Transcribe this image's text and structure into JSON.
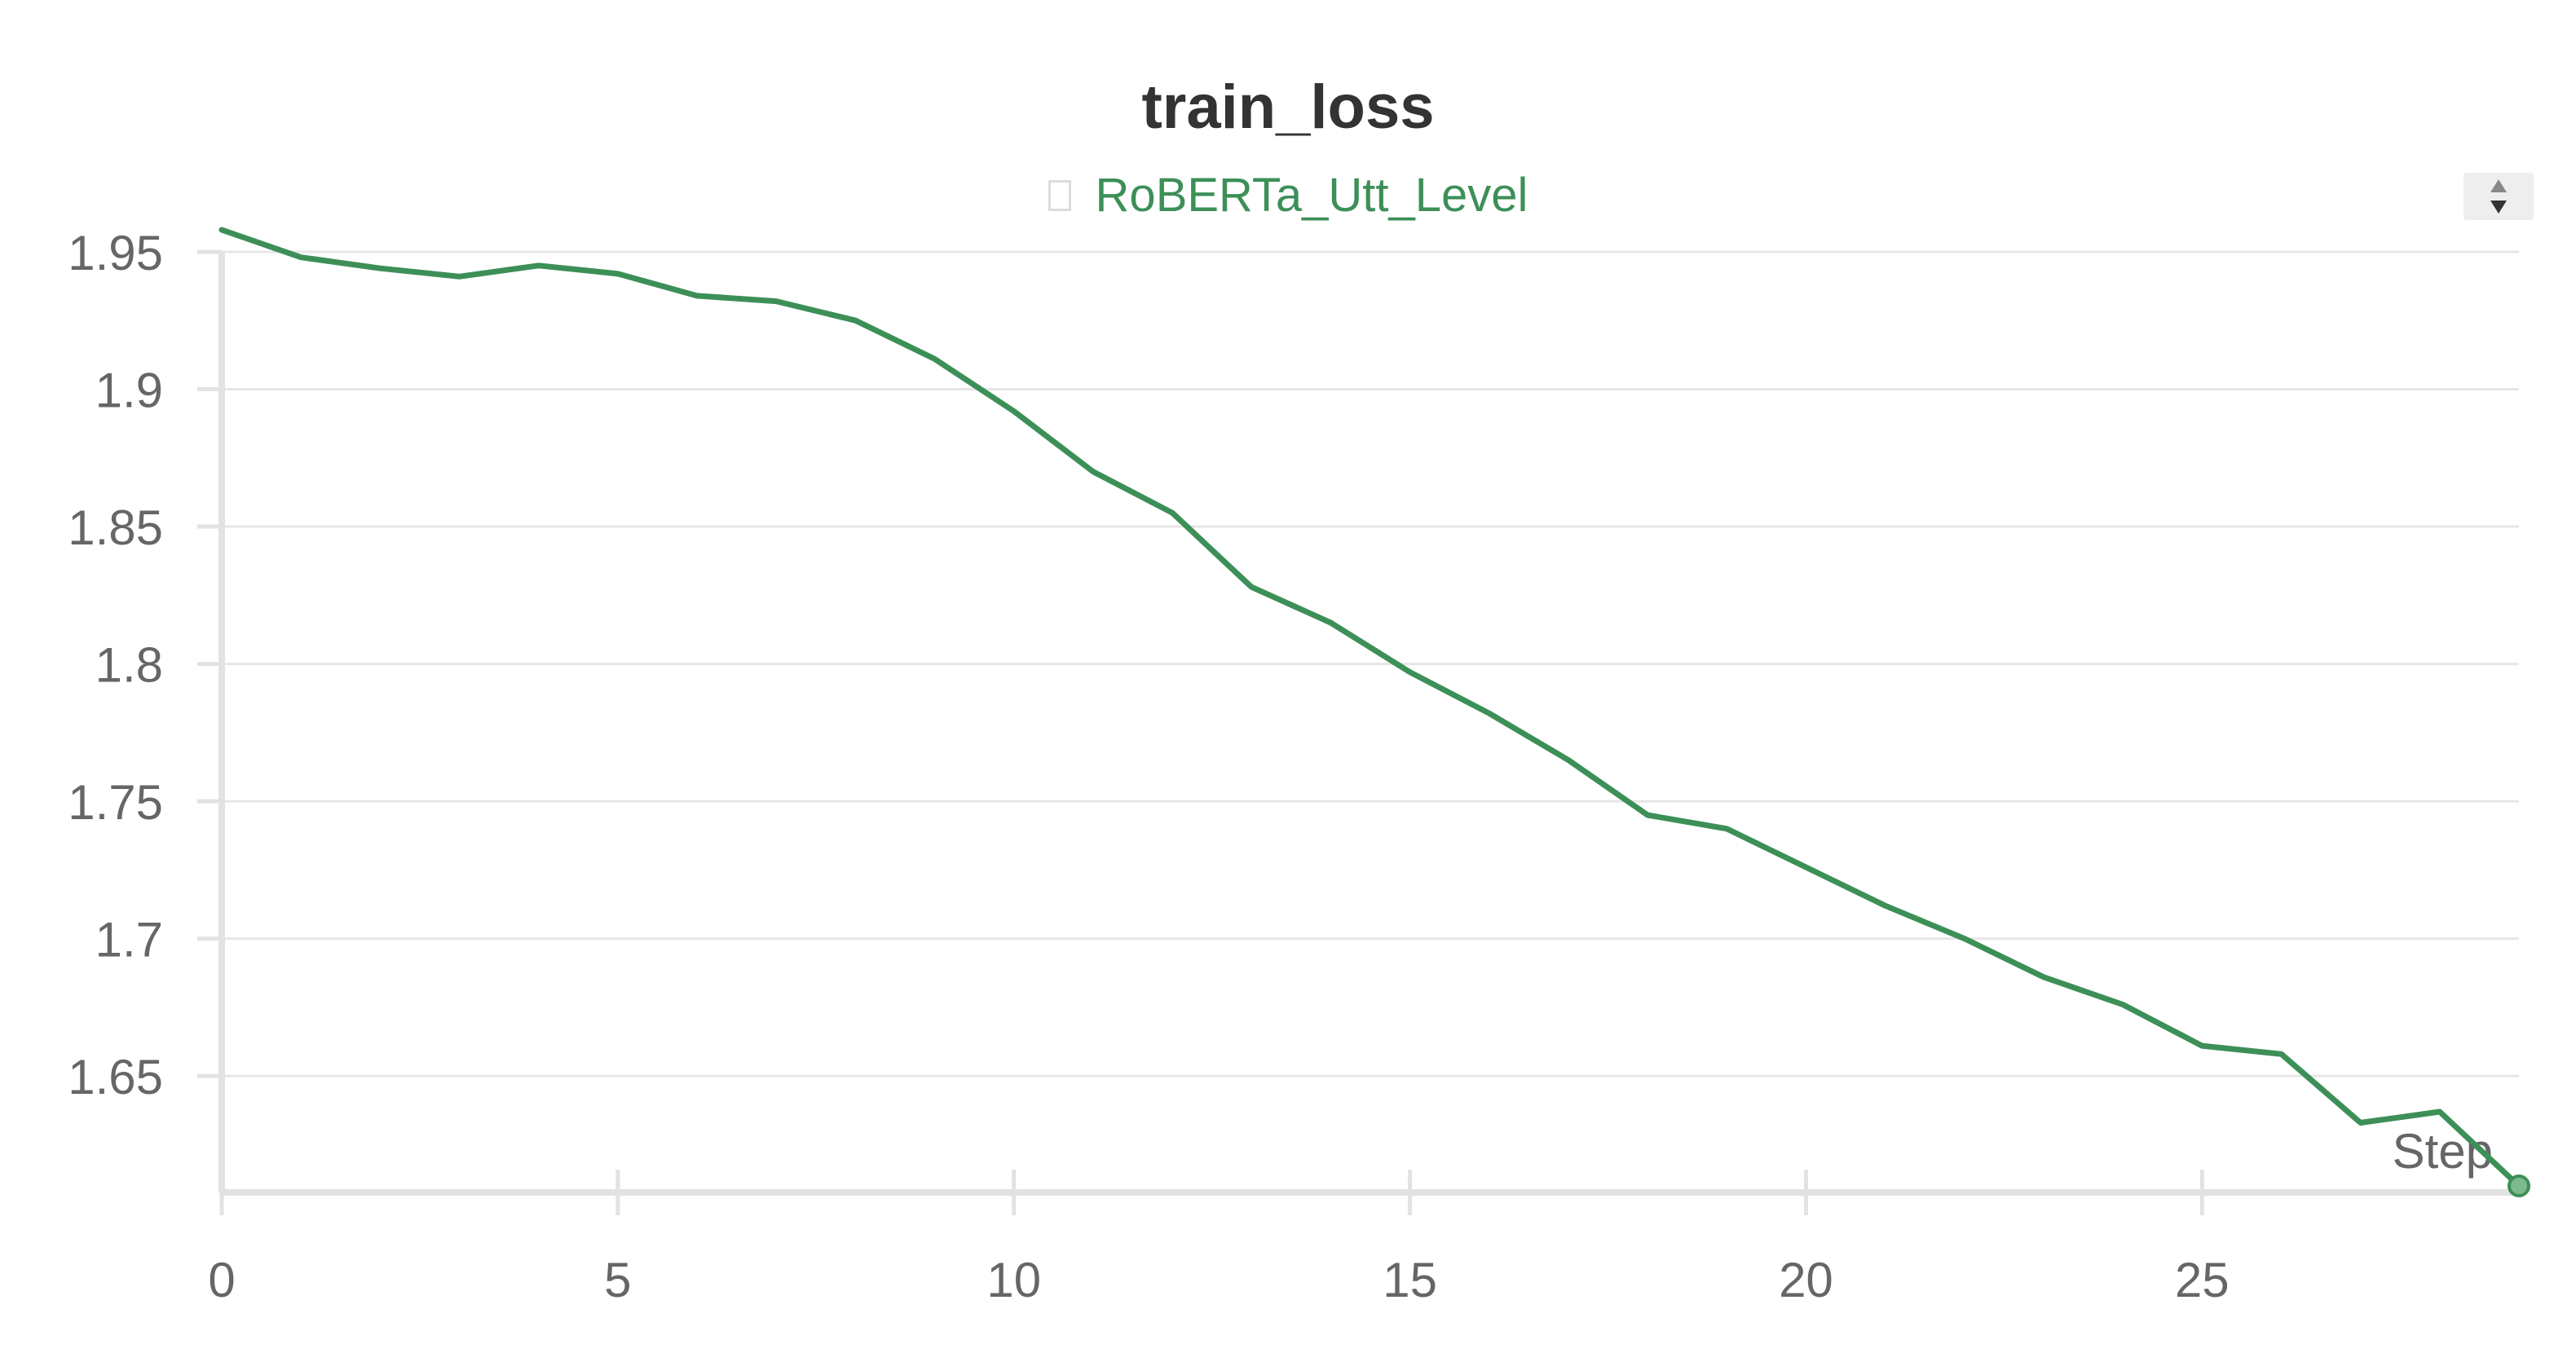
{
  "chart_data": {
    "type": "line",
    "title": "train_loss",
    "xlabel": "Step",
    "ylabel": "",
    "xlim": [
      0,
      29
    ],
    "ylim": [
      1.61,
      1.958
    ],
    "xticks": [
      0,
      5,
      10,
      15,
      20,
      25
    ],
    "yticks": [
      1.65,
      1.7,
      1.75,
      1.8,
      1.85,
      1.9,
      1.95
    ],
    "xtick_labels": [
      "0",
      "5",
      "10",
      "15",
      "20",
      "25"
    ],
    "ytick_labels": [
      "1.65",
      "1.7",
      "1.75",
      "1.8",
      "1.85",
      "1.9",
      "1.95"
    ],
    "grid": true,
    "legend_position": "top-center",
    "series": [
      {
        "name": "RoBERTa_Utt_Level",
        "color": "#3d8f58",
        "x": [
          0,
          1,
          2,
          3,
          4,
          5,
          6,
          7,
          8,
          9,
          10,
          11,
          12,
          13,
          14,
          15,
          16,
          17,
          18,
          19,
          20,
          21,
          22,
          23,
          24,
          25,
          26,
          27,
          28,
          29
        ],
        "y": [
          1.958,
          1.948,
          1.944,
          1.941,
          1.945,
          1.942,
          1.934,
          1.932,
          1.925,
          1.911,
          1.892,
          1.87,
          1.855,
          1.828,
          1.815,
          1.797,
          1.782,
          1.765,
          1.745,
          1.74,
          1.726,
          1.712,
          1.7,
          1.686,
          1.676,
          1.661,
          1.658,
          1.633,
          1.637,
          1.61
        ]
      }
    ]
  }
}
